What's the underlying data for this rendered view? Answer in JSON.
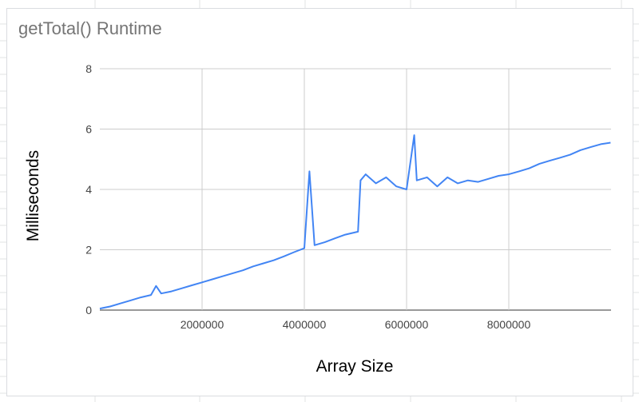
{
  "chart_data": {
    "type": "line",
    "title": "getTotal() Runtime",
    "xlabel": "Array Size",
    "ylabel": "Milliseconds",
    "xlim": [
      0,
      10000000
    ],
    "ylim": [
      0,
      8
    ],
    "x_ticks": [
      2000000,
      4000000,
      6000000,
      8000000
    ],
    "y_ticks": [
      0,
      2,
      4,
      6,
      8
    ],
    "grid": true,
    "legend": "none",
    "series": [
      {
        "color": "#4285f4",
        "x": [
          0,
          200000,
          400000,
          600000,
          800000,
          1000000,
          1100000,
          1200000,
          1400000,
          1600000,
          1800000,
          2000000,
          2200000,
          2400000,
          2600000,
          2800000,
          3000000,
          3200000,
          3400000,
          3600000,
          3800000,
          4000000,
          4100000,
          4200000,
          4400000,
          4600000,
          4800000,
          5000000,
          5050000,
          5100000,
          5200000,
          5400000,
          5600000,
          5800000,
          6000000,
          6150000,
          6200000,
          6400000,
          6600000,
          6800000,
          7000000,
          7200000,
          7400000,
          7600000,
          7800000,
          8000000,
          8200000,
          8400000,
          8600000,
          8800000,
          9000000,
          9200000,
          9400000,
          9600000,
          9800000,
          9990000
        ],
        "y": [
          0.05,
          0.12,
          0.22,
          0.32,
          0.42,
          0.5,
          0.8,
          0.55,
          0.62,
          0.72,
          0.82,
          0.92,
          1.02,
          1.12,
          1.22,
          1.32,
          1.45,
          1.55,
          1.65,
          1.78,
          1.92,
          2.05,
          4.6,
          2.15,
          2.25,
          2.38,
          2.5,
          2.58,
          2.6,
          4.3,
          4.5,
          4.2,
          4.4,
          4.1,
          4.0,
          5.8,
          4.3,
          4.4,
          4.1,
          4.4,
          4.2,
          4.3,
          4.25,
          4.35,
          4.45,
          4.5,
          4.6,
          4.7,
          4.85,
          4.95,
          5.05,
          5.15,
          5.3,
          5.4,
          5.5,
          5.55
        ]
      }
    ]
  }
}
